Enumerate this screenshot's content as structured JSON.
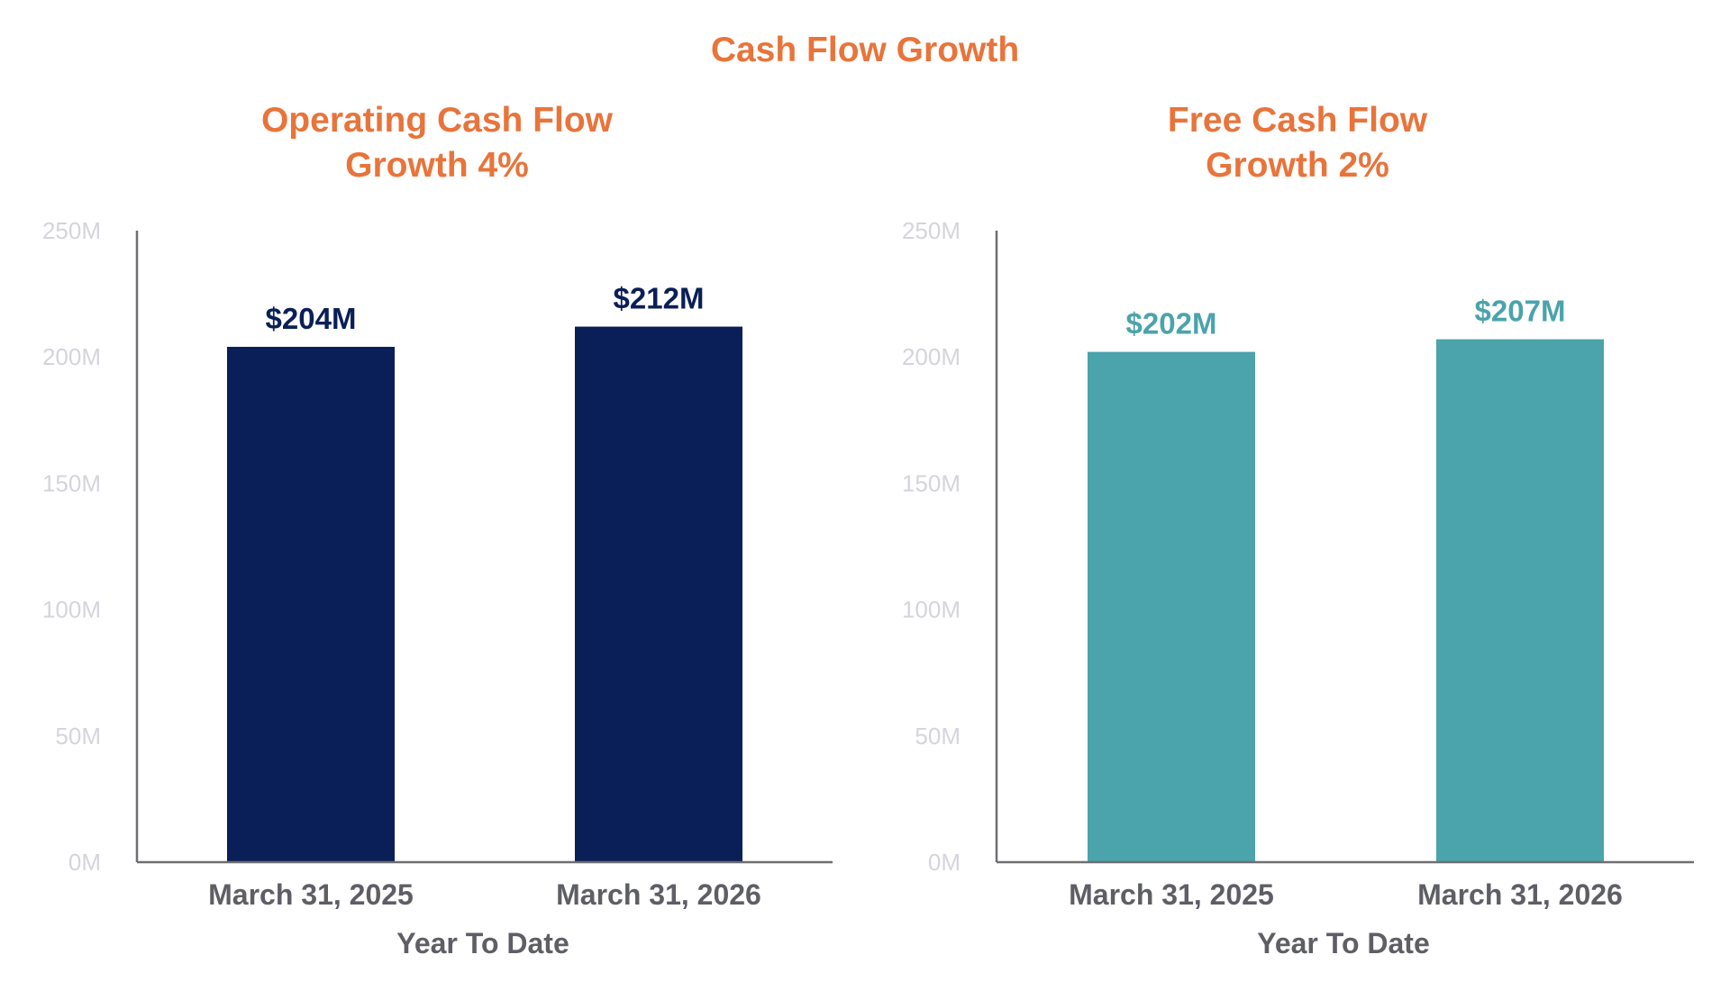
{
  "title": "Cash Flow Growth",
  "colors": {
    "title": "#E8743B",
    "axis": "#6E6E73",
    "tick_label": "#D4D4DC",
    "category_label": "#5E5E66",
    "operating_bar": "#0A1F57",
    "free_bar": "#4BA3AB"
  },
  "chart_data": [
    {
      "type": "bar",
      "title": "Operating Cash Flow\nGrowth 4%",
      "title_lines": [
        "Operating Cash Flow",
        "Growth 4%"
      ],
      "categories": [
        "March 31, 2025",
        "March 31, 2026"
      ],
      "values": [
        204,
        212
      ],
      "data_labels": [
        "$204M",
        "$212M"
      ],
      "xlabel": "Year To Date",
      "ylabel": "",
      "ylim": [
        0,
        250
      ],
      "yticks": [
        0,
        50,
        100,
        150,
        200,
        250
      ],
      "ytick_labels": [
        "0M",
        "50M",
        "100M",
        "150M",
        "200M",
        "250M"
      ],
      "bar_color": "#0A1F57",
      "label_color": "#0A1F57",
      "grid": false,
      "legend": "none"
    },
    {
      "type": "bar",
      "title": "Free Cash Flow\nGrowth 2%",
      "title_lines": [
        "Free Cash Flow",
        "Growth 2%"
      ],
      "categories": [
        "March 31, 2025",
        "March 31, 2026"
      ],
      "values": [
        202,
        207
      ],
      "data_labels": [
        "$202M",
        "$207M"
      ],
      "xlabel": "Year To Date",
      "ylabel": "",
      "ylim": [
        0,
        250
      ],
      "yticks": [
        0,
        50,
        100,
        150,
        200,
        250
      ],
      "ytick_labels": [
        "0M",
        "50M",
        "100M",
        "150M",
        "200M",
        "250M"
      ],
      "bar_color": "#4BA3AB",
      "label_color": "#4BA3AB",
      "grid": false,
      "legend": "none"
    }
  ]
}
